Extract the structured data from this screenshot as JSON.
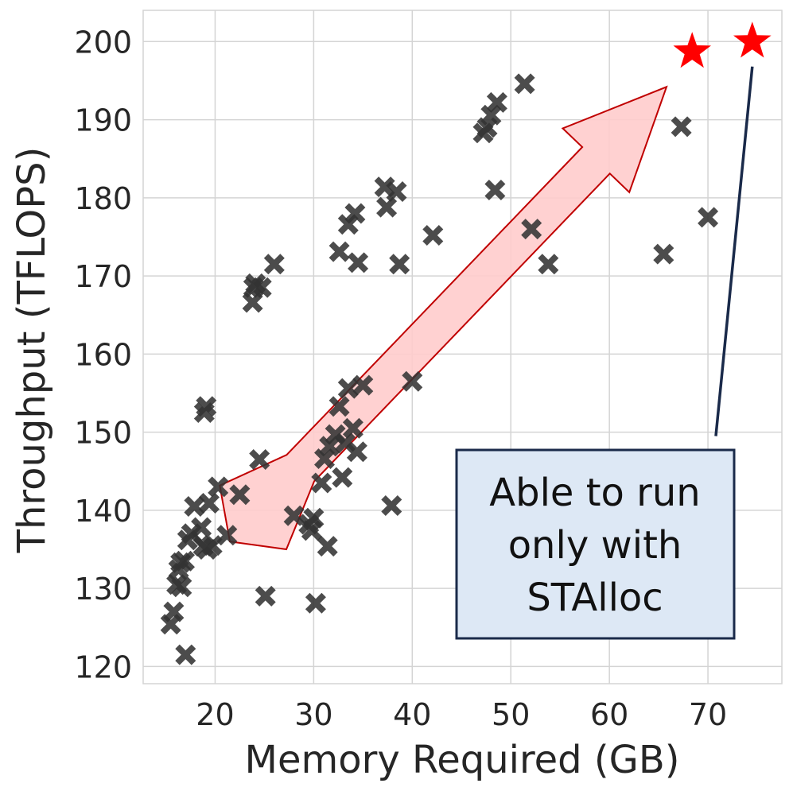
{
  "chart_data": {
    "type": "scatter",
    "xlabel": "Memory Required (GB)",
    "ylabel": "Throughput (TFLOPS)",
    "xlim": [
      12.7,
      77.5
    ],
    "ylim": [
      117.8,
      204.0
    ],
    "xticks": [
      20,
      30,
      40,
      50,
      60,
      70
    ],
    "yticks": [
      120,
      130,
      140,
      150,
      160,
      170,
      180,
      190,
      200
    ],
    "grid": true,
    "legend": "none",
    "colors": {
      "points": "#333333",
      "stars": "#ff0000",
      "arrow_fill": "#ffcccc",
      "arrow_edge": "#c00000",
      "annotation_box_fill": "#dde8f5",
      "annotation_box_edge": "#1a2a4a"
    },
    "series": [
      {
        "marker": "x-filled",
        "points": [
          [
            15.5,
            125.4
          ],
          [
            15.8,
            127.0
          ],
          [
            16.1,
            130.5
          ],
          [
            16.3,
            132.4
          ],
          [
            16.5,
            133.3
          ],
          [
            16.6,
            130.2
          ],
          [
            16.9,
            133.5
          ],
          [
            17.0,
            121.5
          ],
          [
            17.2,
            136.2
          ],
          [
            17.6,
            137.0
          ],
          [
            17.9,
            140.5
          ],
          [
            18.6,
            137.8
          ],
          [
            18.8,
            135.4
          ],
          [
            18.9,
            152.5
          ],
          [
            19.1,
            153.3
          ],
          [
            19.2,
            135.0
          ],
          [
            19.4,
            140.9
          ],
          [
            19.7,
            135.5
          ],
          [
            20.3,
            143.0
          ],
          [
            21.2,
            136.8
          ],
          [
            22.5,
            142.0
          ],
          [
            23.8,
            166.6
          ],
          [
            23.9,
            168.5
          ],
          [
            24.1,
            169.0
          ],
          [
            24.5,
            146.5
          ],
          [
            24.7,
            168.5
          ],
          [
            25.1,
            129.0
          ],
          [
            26.0,
            171.5
          ],
          [
            28.0,
            139.3
          ],
          [
            29.5,
            138.2
          ],
          [
            29.8,
            137.4
          ],
          [
            30.0,
            139.0
          ],
          [
            30.2,
            128.1
          ],
          [
            30.8,
            143.5
          ],
          [
            31.1,
            146.6
          ],
          [
            31.4,
            135.4
          ],
          [
            31.6,
            148.2
          ],
          [
            32.2,
            149.7
          ],
          [
            32.6,
            153.3
          ],
          [
            32.6,
            173.1
          ],
          [
            32.9,
            144.2
          ],
          [
            33.2,
            148.6
          ],
          [
            33.5,
            155.6
          ],
          [
            33.5,
            176.6
          ],
          [
            34.0,
            150.5
          ],
          [
            34.2,
            178.0
          ],
          [
            34.4,
            147.5
          ],
          [
            34.5,
            171.7
          ],
          [
            35.0,
            156.0
          ],
          [
            37.2,
            181.4
          ],
          [
            37.4,
            178.8
          ],
          [
            37.9,
            140.6
          ],
          [
            38.4,
            180.8
          ],
          [
            38.7,
            171.5
          ],
          [
            40.0,
            156.5
          ],
          [
            42.1,
            175.2
          ],
          [
            47.2,
            188.3
          ],
          [
            47.6,
            189.0
          ],
          [
            48.0,
            190.6
          ],
          [
            48.4,
            181.0
          ],
          [
            48.6,
            192.2
          ],
          [
            51.4,
            194.6
          ],
          [
            52.1,
            176.0
          ],
          [
            53.8,
            171.5
          ],
          [
            65.5,
            172.8
          ],
          [
            67.3,
            189.1
          ],
          [
            70.0,
            177.5
          ]
        ]
      },
      {
        "marker": "star",
        "points": [
          [
            68.4,
            198.7
          ],
          [
            74.5,
            200.0
          ]
        ]
      }
    ],
    "annotations": [
      {
        "kind": "arrow",
        "from": [
          21.5,
          136.0
        ],
        "to": [
          65.8,
          194.2
        ]
      },
      {
        "kind": "line",
        "from": [
          74.5,
          196.8
        ],
        "to": [
          70.8,
          149.5
        ]
      },
      {
        "kind": "textbox",
        "lines": [
          "Able to run",
          "only with",
          "STAlloc"
        ]
      }
    ]
  }
}
